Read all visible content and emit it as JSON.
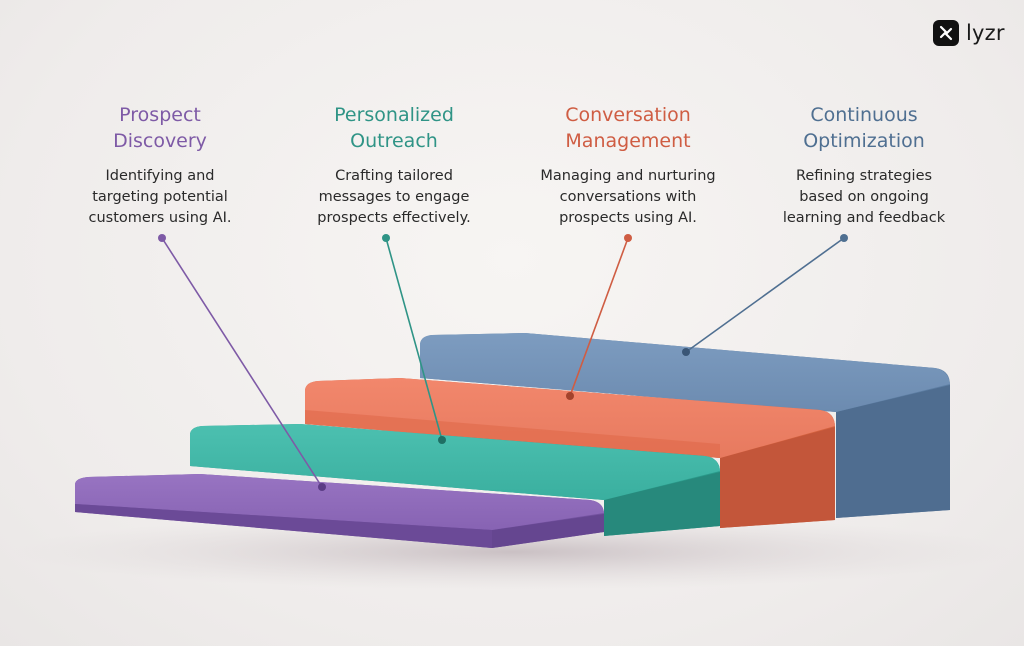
{
  "brand": {
    "name": "lyzr"
  },
  "steps": [
    {
      "title_line1": "Prospect",
      "title_line2": "Discovery",
      "desc_line1": "Identifying and",
      "desc_line2": "targeting potential",
      "desc_line3": "customers using AI.",
      "color": "#7e5aa6"
    },
    {
      "title_line1": "Personalized",
      "title_line2": "Outreach",
      "desc_line1": "Crafting tailored",
      "desc_line2": "messages to engage",
      "desc_line3": "prospects effectively.",
      "color": "#2f9486"
    },
    {
      "title_line1": "Conversation",
      "title_line2": "Management",
      "desc_line1": "Managing and nurturing",
      "desc_line2": "conversations with",
      "desc_line3": "prospects using AI.",
      "color": "#cf5d43"
    },
    {
      "title_line1": "Continuous",
      "title_line2": "Optimization",
      "desc_line1": "Refining strategies",
      "desc_line2": "based on ongoing",
      "desc_line3": "learning and feedback",
      "color": "#4f6f91"
    }
  ]
}
